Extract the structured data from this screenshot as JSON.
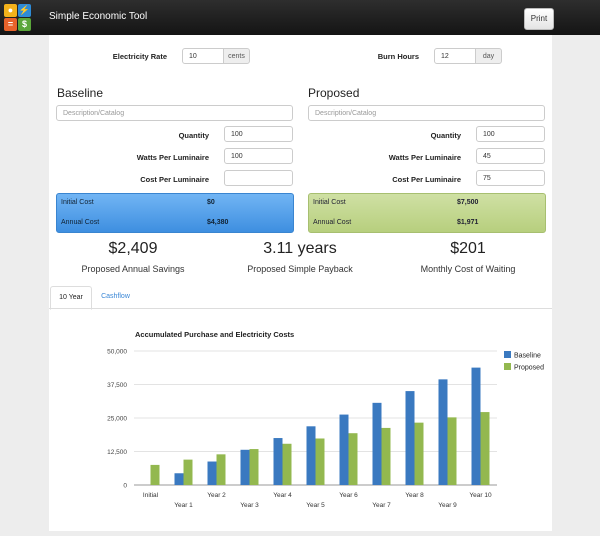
{
  "app": {
    "title": "Simple Economic Tool",
    "print_label": "Print"
  },
  "inputs": {
    "electricity_rate": {
      "label": "Electricity Rate",
      "value": "10",
      "unit": "cents"
    },
    "burn_hours": {
      "label": "Burn Hours",
      "value": "12",
      "unit": "day"
    }
  },
  "baseline": {
    "title": "Baseline",
    "description_placeholder": "Description/Catalog",
    "quantity_label": "Quantity",
    "quantity": "100",
    "watts_label": "Watts Per Luminaire",
    "watts": "100",
    "cost_label": "Cost Per Luminaire",
    "cost": "",
    "initial_cost_label": "Initial Cost",
    "initial_cost": "$0",
    "annual_cost_label": "Annual Cost",
    "annual_cost": "$4,380"
  },
  "proposed": {
    "title": "Proposed",
    "description_placeholder": "Description/Catalog",
    "quantity_label": "Quantity",
    "quantity": "100",
    "watts_label": "Watts Per Luminaire",
    "watts": "45",
    "cost_label": "Cost Per Luminaire",
    "cost": "75",
    "initial_cost_label": "Initial Cost",
    "initial_cost": "$7,500",
    "annual_cost_label": "Annual Cost",
    "annual_cost": "$1,971"
  },
  "summary": {
    "savings": {
      "value": "$2,409",
      "label": "Proposed Annual Savings"
    },
    "payback": {
      "value": "3.11 years",
      "label": "Proposed Simple Payback"
    },
    "waiting": {
      "value": "$201",
      "label": "Monthly Cost of Waiting"
    }
  },
  "tabs": [
    {
      "label": "10 Year",
      "active": true
    },
    {
      "label": "Cashflow",
      "active": false
    }
  ],
  "colors": {
    "baseline": "#3a79c0",
    "proposed": "#93b84f"
  },
  "chart_data": {
    "type": "bar",
    "title": "Accumulated Purchase and Electricity Costs",
    "categories": [
      "Initial",
      "Year 1",
      "Year 2",
      "Year 3",
      "Year 4",
      "Year 5",
      "Year 6",
      "Year 7",
      "Year 8",
      "Year 9",
      "Year 10"
    ],
    "series": [
      {
        "name": "Baseline",
        "values": [
          0,
          4380,
          8760,
          13140,
          17520,
          21900,
          26280,
          30660,
          35040,
          39420,
          43800
        ]
      },
      {
        "name": "Proposed",
        "values": [
          7500,
          9471,
          11442,
          13413,
          15384,
          17355,
          19326,
          21297,
          23268,
          25239,
          27210
        ]
      }
    ],
    "ylim": [
      0,
      50000
    ],
    "yticks": [
      "0",
      "12,500",
      "25,000",
      "37,500",
      "50,000"
    ],
    "grid": true,
    "legend": "right"
  }
}
